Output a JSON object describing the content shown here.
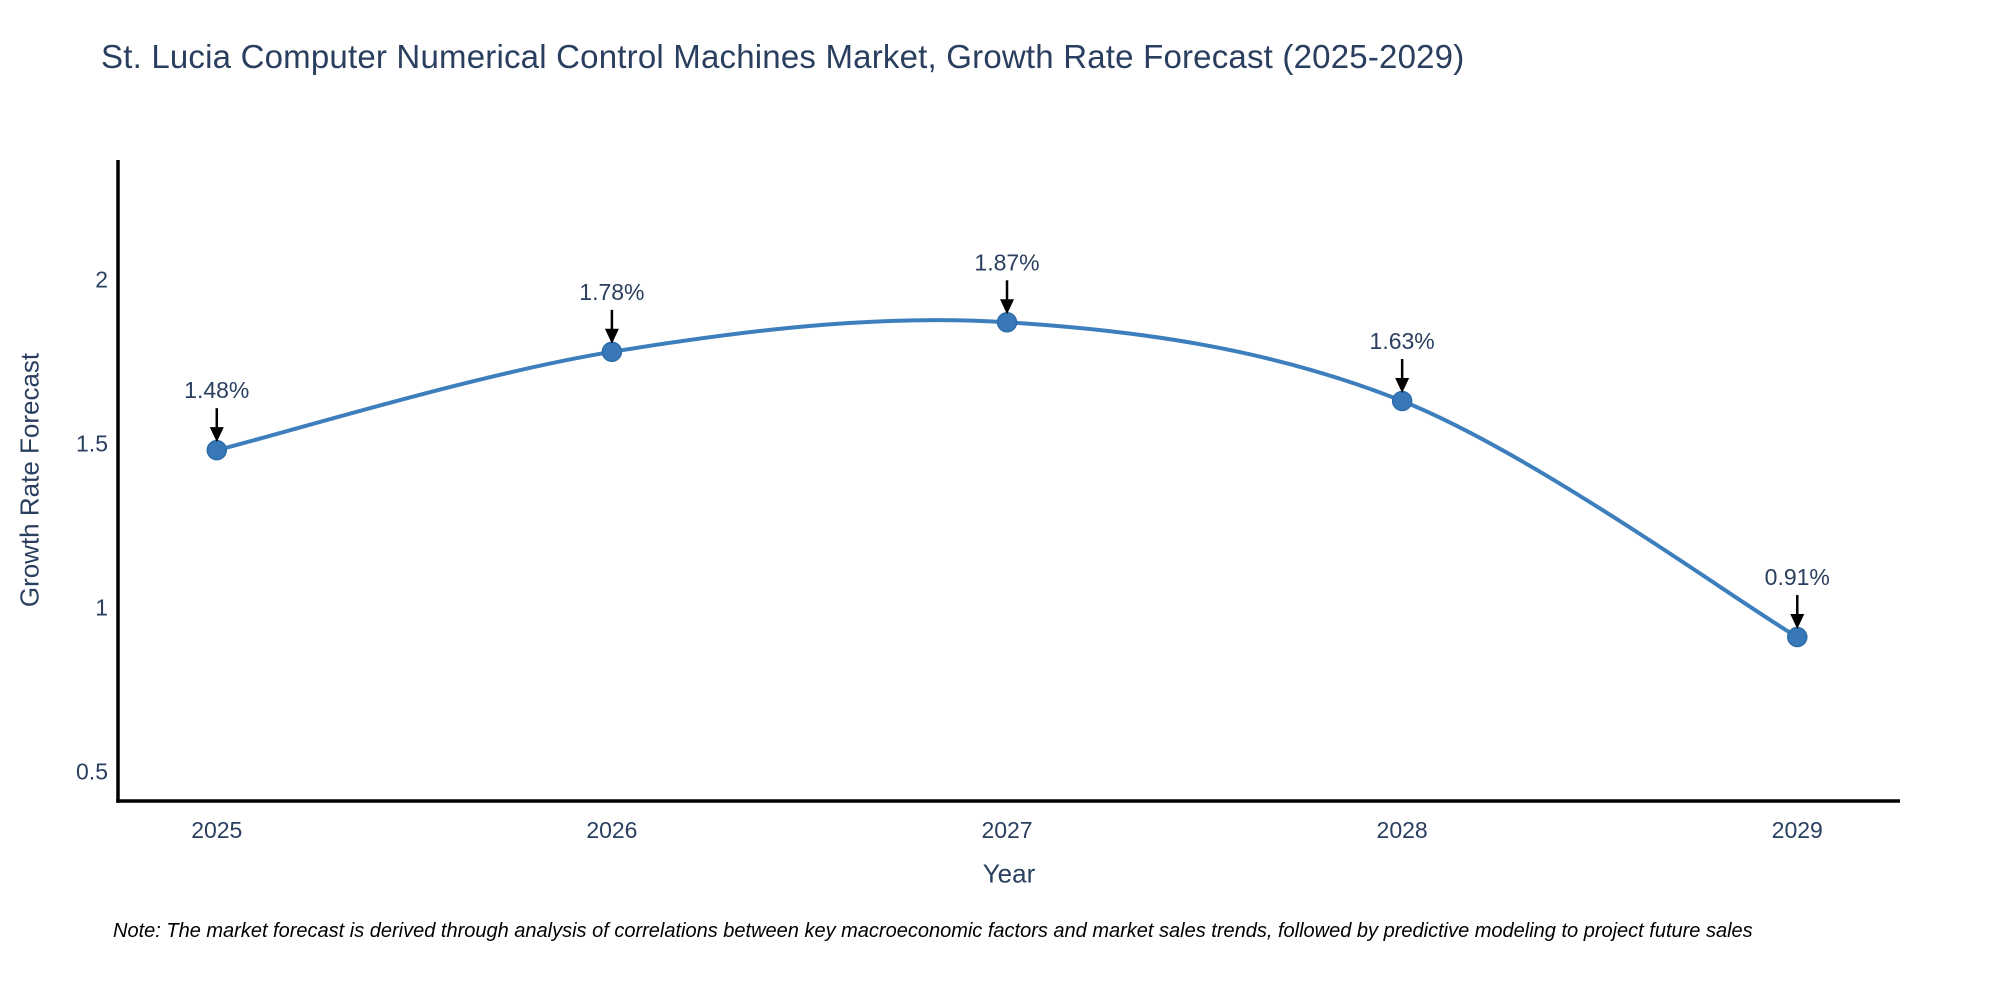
{
  "title": "St. Lucia Computer Numerical Control Machines Market, Growth Rate Forecast (2025-2029)",
  "note": "Note: The market forecast is derived through analysis of correlations between key macroeconomic factors and market sales trends, followed by predictive modeling to project future sales",
  "chart_data": {
    "type": "line",
    "title": "St. Lucia Computer Numerical Control Machines Market, Growth Rate Forecast (2025-2029)",
    "xlabel": "Year",
    "ylabel": "Growth Rate Forecast",
    "x": [
      2025,
      2026,
      2027,
      2028,
      2029
    ],
    "values": [
      1.48,
      1.78,
      1.87,
      1.63,
      0.91
    ],
    "point_labels": [
      "1.48%",
      "1.78%",
      "1.87%",
      "1.63%",
      "0.91%"
    ],
    "x_tick_labels": [
      "2025",
      "2026",
      "2027",
      "2028",
      "2029"
    ],
    "y_ticks": [
      0.5,
      1,
      1.5,
      2
    ],
    "y_tick_labels": [
      "0.5",
      "1",
      "1.5",
      "2"
    ],
    "xlim": [
      2024.75,
      2029.26
    ],
    "ylim": [
      0.41,
      2.365
    ],
    "line_shape": "spline",
    "grid": false,
    "legend": "none",
    "colors": {
      "line": "#3d7ebd",
      "marker": "#3878b8",
      "marker_edge": "#2d6ca8",
      "axis": "#000000",
      "text": "#2a3f5f",
      "annotation_arrow": "#000000",
      "note_text": "#000000",
      "background": "#ffffff"
    }
  }
}
